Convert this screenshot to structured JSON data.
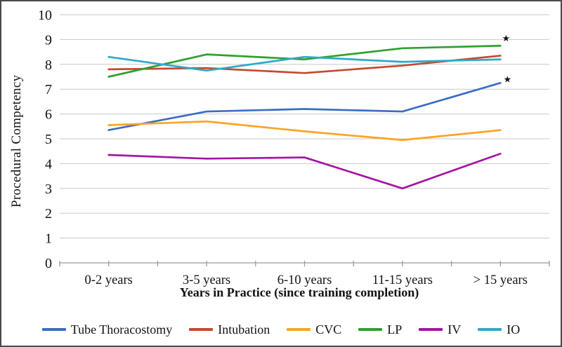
{
  "figure": {
    "background": "#ffffff",
    "border_color": "#4a4a4a",
    "gridline_color": "#c9c9c9",
    "axis_color": "#9a9a9a"
  },
  "chart_data": {
    "type": "line",
    "title": "",
    "xlabel": "Years in Practice (since training completion)",
    "ylabel": "Procedural Competency",
    "categories": [
      "0-2 years",
      "3-5 years",
      "6-10 years",
      "11-15 years",
      "> 15 years"
    ],
    "yticks": [
      0,
      1,
      2,
      3,
      4,
      5,
      6,
      7,
      8,
      9,
      10
    ],
    "ylim": [
      0,
      10
    ],
    "grid": true,
    "legend_position": "bottom",
    "series": [
      {
        "name": "Tube Thoracostomy",
        "color": "#3B6CC4",
        "values": [
          5.35,
          6.1,
          6.2,
          6.1,
          7.25
        ]
      },
      {
        "name": "Intubation",
        "color": "#C44A2E",
        "values": [
          7.8,
          7.85,
          7.65,
          7.95,
          8.35
        ]
      },
      {
        "name": "CVC",
        "color": "#FCA426",
        "values": [
          5.55,
          5.7,
          5.3,
          4.95,
          5.35
        ]
      },
      {
        "name": "LP",
        "color": "#2FA12F",
        "values": [
          7.5,
          8.4,
          8.2,
          8.65,
          8.75
        ]
      },
      {
        "name": "IV",
        "color": "#A315A3",
        "values": [
          4.35,
          4.2,
          4.25,
          3.0,
          4.4
        ]
      },
      {
        "name": "IO",
        "color": "#2EA9C9",
        "values": [
          8.3,
          7.75,
          8.3,
          8.1,
          8.2
        ]
      }
    ],
    "annotations": [
      {
        "symbol": "★",
        "name": "significance-star-lp",
        "x_index": 4,
        "dx": 8,
        "value": 9.05
      },
      {
        "symbol": "★",
        "name": "significance-star-tube-thoracostomy",
        "x_index": 4,
        "dx": 10,
        "value": 7.4
      }
    ]
  }
}
